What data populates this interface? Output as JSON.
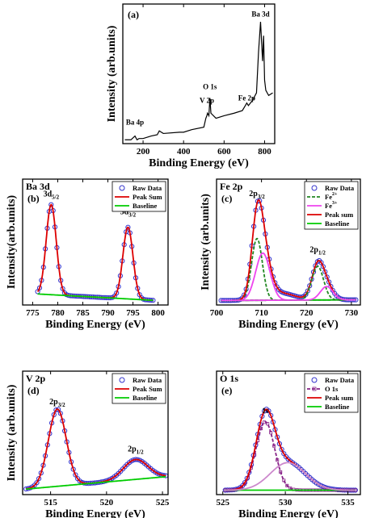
{
  "chart_data": [
    {
      "id": "a",
      "type": "line",
      "panel_label": "(a)",
      "xlabel": "Binding Energy (eV)",
      "ylabel": "Intensity (arb.units)",
      "xlim": [
        100,
        850
      ],
      "xticks": [
        200,
        400,
        600,
        800
      ],
      "x_direction": "ascending",
      "show_y_ticks": false,
      "series": [
        {
          "color": "#000000",
          "marker": "none",
          "x": [
            110,
            140,
            160,
            170,
            180,
            200,
            240,
            270,
            280,
            300,
            380,
            400,
            440,
            500,
            510,
            515,
            518,
            525,
            530,
            535,
            560,
            600,
            650,
            690,
            705,
            712,
            720,
            740,
            760,
            770,
            780,
            790,
            795,
            800,
            806,
            820,
            840
          ],
          "y": [
            3,
            3,
            6,
            3,
            4,
            4,
            6,
            7,
            10,
            8,
            9,
            9,
            11,
            13,
            20,
            22,
            24,
            22,
            36,
            24,
            20,
            22,
            24,
            26,
            30,
            32,
            30,
            34,
            40,
            72,
            96,
            65,
            85,
            50,
            42,
            38,
            40
          ]
        }
      ],
      "annotations": [
        {
          "text": "Ba 4p",
          "x": 160,
          "y": 15
        },
        {
          "text": "V 2p",
          "x": 515,
          "y": 32
        },
        {
          "text": "O 1s",
          "x": 530,
          "y": 43
        },
        {
          "text": "Fe 2p",
          "x": 712,
          "y": 34
        },
        {
          "text": "Ba 3d",
          "x": 780,
          "y": 100
        }
      ]
    },
    {
      "id": "b",
      "type": "line",
      "panel_label": "(b)",
      "element_label": "Ba 3d",
      "xlabel": "Binding Energy (eV)",
      "ylabel": "Intensity(arb.units)",
      "xlim": [
        773,
        802
      ],
      "xticks": [
        775,
        780,
        785,
        790,
        795,
        800
      ],
      "x_direction": "ascending",
      "show_y_ticks": false,
      "legend_location": "top-right",
      "series": [
        {
          "name": "Raw Data",
          "color": "#3333cc",
          "marker": "circle",
          "line": "none",
          "peaks": [
            [
              778.7,
              98,
              1.0
            ],
            [
              794.0,
              78,
              1.0
            ]
          ],
          "x_range": [
            776,
            799
          ],
          "baseline": [
            0,
            -0.3,
            776
          ],
          "count": 60
        },
        {
          "name": "Peak Sum",
          "color": "#dd0000",
          "marker": "none",
          "line": "solid",
          "peaks": [
            [
              778.7,
              98,
              1.0
            ],
            [
              794.0,
              78,
              1.0
            ]
          ],
          "x_range": [
            776,
            799
          ],
          "baseline": [
            0,
            -0.3,
            776
          ]
        },
        {
          "name": "Baseline",
          "color": "#00cc00",
          "marker": "none",
          "line": "solid",
          "peaks": [],
          "x_range": [
            776,
            799
          ],
          "baseline": [
            0,
            -0.3,
            776
          ]
        }
      ],
      "ylim": [
        -12,
        125
      ],
      "annotations": [
        {
          "text": "3d",
          "sub": "5/2",
          "x": 778.7,
          "y": 106
        },
        {
          "text": "3d",
          "sub": "3/2",
          "x": 794.0,
          "y": 87
        }
      ]
    },
    {
      "id": "c",
      "type": "line",
      "panel_label": "(c)",
      "element_label": "Fe 2p",
      "xlabel": "Binding Energy (eV)",
      "ylabel": "Intensity (arb.units)",
      "xlim": [
        700,
        732
      ],
      "xticks": [
        700,
        710,
        720,
        730
      ],
      "x_direction": "ascending",
      "show_y_ticks": false,
      "legend_location": "top-right",
      "series": [
        {
          "name": "Raw Data",
          "color": "#3333cc",
          "marker": "circle",
          "line": "none",
          "peaks": [
            [
              709.0,
              55,
              1.2
            ],
            [
              710.3,
              42,
              1.6
            ],
            [
              722.5,
              30,
              1.3
            ],
            [
              724.5,
              12,
              1.4
            ],
            [
              714.5,
              6,
              3
            ]
          ],
          "x_range": [
            701,
            731
          ],
          "baseline": [
            2,
            0.02,
            701
          ],
          "count": 70
        },
        {
          "name": "Fe",
          "sup": "2+",
          "color": "#228822",
          "marker": "none",
          "line": "dash",
          "peaks": [
            [
              709.0,
              55,
              1.2
            ]
          ],
          "x_range": [
            701,
            731
          ],
          "baseline": [
            2,
            0.02,
            701
          ]
        },
        {
          "name": "Fe",
          "sup": "3+",
          "color": "#ee44ee",
          "marker": "none",
          "line": "solid",
          "peaks": [
            [
              710.3,
              42,
              1.6
            ]
          ],
          "x_range": [
            701,
            731
          ],
          "baseline": [
            2,
            0.02,
            701
          ]
        },
        {
          "name": "Peak sum",
          "color": "#dd0000",
          "marker": "none",
          "line": "solid",
          "peaks": [
            [
              709.0,
              55,
              1.2
            ],
            [
              710.3,
              42,
              1.6
            ],
            [
              722.5,
              30,
              1.3
            ],
            [
              724.5,
              12,
              1.4
            ],
            [
              714.5,
              6,
              3
            ]
          ],
          "x_range": [
            701,
            731
          ],
          "baseline": [
            2,
            0.02,
            701
          ]
        },
        {
          "name": "Baseline",
          "color": "#00cc00",
          "marker": "none",
          "line": "solid",
          "peaks": [],
          "x_range": [
            701,
            731
          ],
          "baseline": [
            2,
            0.02,
            701
          ]
        }
      ],
      "extra_components": [
        {
          "color": "#228822",
          "line": "dash",
          "peaks": [
            [
              722.5,
              30,
              1.3
            ]
          ],
          "x_range": [
            701,
            731
          ],
          "baseline": [
            2,
            0.02,
            701
          ]
        },
        {
          "color": "#ee44ee",
          "line": "solid",
          "peaks": [
            [
              724.5,
              12,
              1.4
            ]
          ],
          "x_range": [
            701,
            731
          ],
          "baseline": [
            2,
            0.02,
            701
          ]
        }
      ],
      "ylim": [
        -2,
        110
      ],
      "annotations": [
        {
          "text": "2p",
          "sub": "3/2",
          "x": 709.0,
          "y": 95
        },
        {
          "text": "2p",
          "sub": "1/2",
          "x": 722.5,
          "y": 45
        }
      ]
    },
    {
      "id": "d",
      "type": "line",
      "panel_label": "(d)",
      "element_label": "V 2p",
      "xlabel": "Binding Energy (eV)",
      "ylabel": "Intensity (arb.units)",
      "xlim": [
        512.5,
        525.5
      ],
      "xticks": [
        515,
        520,
        525
      ],
      "x_direction": "ascending",
      "show_y_ticks": false,
      "legend_location": "top-right",
      "series": [
        {
          "name": "Raw Data",
          "color": "#3333cc",
          "marker": "circle",
          "line": "none",
          "peaks": [
            [
              515.6,
              70,
              0.8
            ],
            [
              522.6,
              18,
              1.1
            ]
          ],
          "x_range": [
            512.8,
            525.3
          ],
          "baseline": [
            3,
            0.9,
            512.8
          ],
          "count": 65
        },
        {
          "name": "Peak Sum",
          "color": "#dd0000",
          "marker": "none",
          "line": "solid",
          "peaks": [
            [
              515.6,
              70,
              0.8
            ],
            [
              522.6,
              18,
              1.1
            ]
          ],
          "x_range": [
            512.8,
            525.3
          ],
          "baseline": [
            3,
            0.9,
            512.8
          ]
        },
        {
          "name": "Baseline",
          "color": "#00cc00",
          "marker": "none",
          "line": "solid",
          "peaks": [],
          "x_range": [
            512.8,
            525.3
          ],
          "baseline": [
            3,
            0.9,
            512.8
          ]
        }
      ],
      "ylim": [
        -2,
        110
      ],
      "annotations": [
        {
          "text": "2p",
          "sub": "3/2",
          "x": 515.6,
          "y": 80
        },
        {
          "text": "2p",
          "sub": "1/2",
          "x": 522.6,
          "y": 37
        }
      ]
    },
    {
      "id": "e",
      "type": "line",
      "panel_label": "(e)",
      "element_label": "O 1s",
      "xlabel": "Binding Energy (eV)",
      "ylabel": "",
      "xlim": [
        524.5,
        536
      ],
      "xticks": [
        525,
        530,
        535
      ],
      "x_direction": "ascending",
      "show_y_ticks": false,
      "legend_location": "top-right",
      "series": [
        {
          "name": "Raw Data",
          "color": "#3333cc",
          "marker": "circle",
          "line": "none",
          "peaks": [
            [
              528.4,
              62,
              0.75
            ],
            [
              530.2,
              25,
              1.4
            ]
          ],
          "x_range": [
            525.2,
            535.6
          ],
          "baseline": [
            2,
            0,
            525.2
          ],
          "count": 60
        },
        {
          "name": "O 1s",
          "color": "#882288",
          "marker": "square",
          "line": "dash",
          "peaks": [
            [
              528.4,
              62,
              0.75
            ]
          ],
          "x_range": [
            525.2,
            535.6
          ],
          "baseline": [
            2,
            0,
            525.2
          ]
        },
        {
          "name": "Peak sum",
          "color": "#dd0000",
          "marker": "none",
          "line": "solid",
          "peaks": [
            [
              528.4,
              62,
              0.75
            ],
            [
              530.2,
              25,
              1.4
            ]
          ],
          "x_range": [
            525.2,
            535.6
          ],
          "baseline": [
            2,
            0,
            525.2
          ]
        },
        {
          "name": "Baseline",
          "color": "#00cc00",
          "marker": "none",
          "line": "solid",
          "peaks": [],
          "x_range": [
            525.2,
            535.6
          ],
          "baseline": [
            2,
            0,
            525.2
          ]
        }
      ],
      "extra_components": [
        {
          "color": "#cc88cc",
          "line": "solid",
          "peaks": [
            [
              530.2,
              25,
              1.4
            ]
          ],
          "x_range": [
            525.2,
            535.6
          ],
          "baseline": [
            2,
            0,
            525.2
          ]
        }
      ],
      "ylim": [
        -2,
        110
      ],
      "annotations": [
        {
          "text": "1s",
          "x": 528.4,
          "y": 72
        }
      ]
    }
  ]
}
